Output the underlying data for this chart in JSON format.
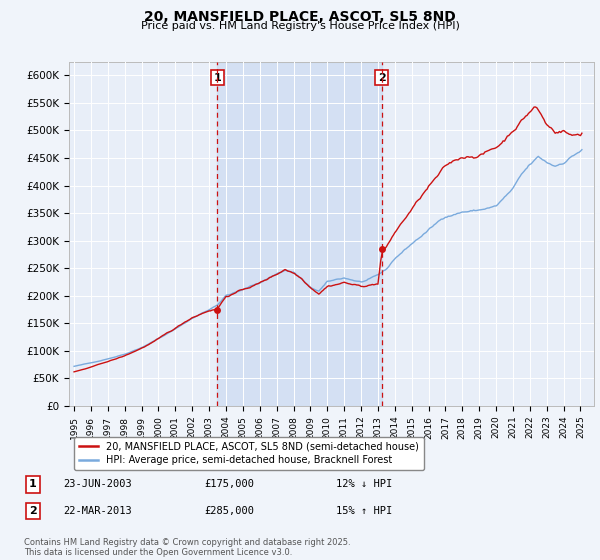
{
  "title": "20, MANSFIELD PLACE, ASCOT, SL5 8ND",
  "subtitle": "Price paid vs. HM Land Registry's House Price Index (HPI)",
  "ylim": [
    0,
    625000
  ],
  "yticks": [
    0,
    50000,
    100000,
    150000,
    200000,
    250000,
    300000,
    350000,
    400000,
    450000,
    500000,
    550000,
    600000
  ],
  "ytick_labels": [
    "£0",
    "£50K",
    "£100K",
    "£150K",
    "£200K",
    "£250K",
    "£300K",
    "£350K",
    "£400K",
    "£450K",
    "£500K",
    "£550K",
    "£600K"
  ],
  "hpi_color": "#7aaadd",
  "price_color": "#cc1111",
  "marker_color": "#cc1111",
  "vline_color": "#cc1111",
  "shade_color": "#c8d8f0",
  "annotation_box_color": "#cc1111",
  "background_color": "#f0f4fa",
  "plot_bg_color": "#e8eef8",
  "grid_color": "#ffffff",
  "legend_label_price": "20, MANSFIELD PLACE, ASCOT, SL5 8ND (semi-detached house)",
  "legend_label_hpi": "HPI: Average price, semi-detached house, Bracknell Forest",
  "transaction1_date": "23-JUN-2003",
  "transaction1_price": "£175,000",
  "transaction1_hpi": "12% ↓ HPI",
  "transaction1_label": "1",
  "transaction2_date": "22-MAR-2013",
  "transaction2_price": "£285,000",
  "transaction2_hpi": "15% ↑ HPI",
  "transaction2_label": "2",
  "footer": "Contains HM Land Registry data © Crown copyright and database right 2025.\nThis data is licensed under the Open Government Licence v3.0.",
  "transaction1_x": 2003.48,
  "transaction1_y": 175000,
  "transaction2_x": 2013.22,
  "transaction2_y": 285000,
  "xlim_left": 1994.7,
  "xlim_right": 2025.8
}
